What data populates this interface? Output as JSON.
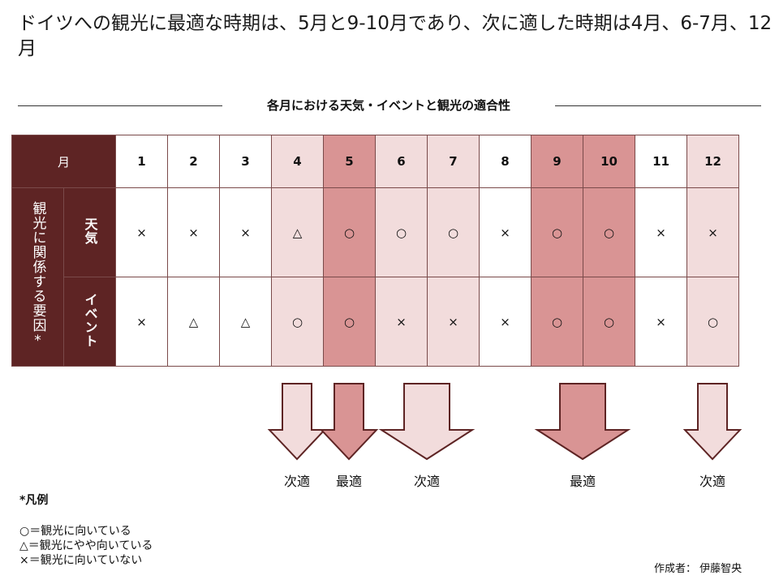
{
  "title": "ドイツへの観光に最適な時期は、5月と9-10月であり、次に適した時期は4月、6-7月、12月",
  "subtitle": "各月における天気・イベントと観光の適合性",
  "table": {
    "month_header": "月",
    "months": [
      "1",
      "2",
      "3",
      "4",
      "5",
      "6",
      "7",
      "8",
      "9",
      "10",
      "11",
      "12"
    ],
    "month_shading": [
      "white",
      "white",
      "white",
      "light",
      "mid",
      "light",
      "light",
      "white",
      "mid",
      "mid",
      "white",
      "light"
    ],
    "factor_group_label": "観光に関係する要因*",
    "rows": [
      {
        "label": "天気",
        "marks": [
          "×",
          "×",
          "×",
          "△",
          "○",
          "○",
          "○",
          "×",
          "○",
          "○",
          "×",
          "×"
        ]
      },
      {
        "label": "イベント",
        "marks": [
          "×",
          "△",
          "△",
          "○",
          "○",
          "×",
          "×",
          "×",
          "○",
          "○",
          "×",
          "○"
        ]
      }
    ]
  },
  "arrows": [
    {
      "label": "次適",
      "kind": "next",
      "months": [
        "4"
      ]
    },
    {
      "label": "最適",
      "kind": "best",
      "months": [
        "5"
      ]
    },
    {
      "label": "次適",
      "kind": "next",
      "months": [
        "6",
        "7"
      ]
    },
    {
      "label": "最適",
      "kind": "best",
      "months": [
        "9",
        "10"
      ]
    },
    {
      "label": "次適",
      "kind": "next",
      "months": [
        "12"
      ]
    }
  ],
  "legend": {
    "title": "*凡例",
    "items": [
      "○＝観光に向いている",
      "△＝観光にやや向いている",
      "×＝観光に向いていない"
    ]
  },
  "author": "作成者： 伊藤智央",
  "colors": {
    "dark": "#5e2424",
    "mid": "#d99494",
    "light": "#f2dcdc",
    "border": "#7a4a4a"
  }
}
